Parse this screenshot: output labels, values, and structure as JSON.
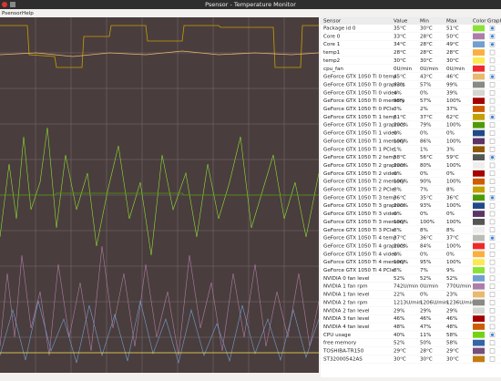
{
  "window": {
    "title": "Psensor - Temperature Monitor"
  },
  "menu": [
    "Psensor",
    "Help"
  ],
  "table": {
    "columns": [
      "Sensor",
      "Value",
      "Min",
      "Max",
      "Color",
      "Graph"
    ],
    "rows": [
      {
        "sensor": "Package id 0",
        "value": "35°C",
        "min": "30°C",
        "max": "51°C",
        "color": "#8ae234",
        "graph": true
      },
      {
        "sensor": "Core 0",
        "value": "33°C",
        "min": "28°C",
        "max": "50°C",
        "color": "#ad7fa8",
        "graph": true
      },
      {
        "sensor": "Core 1",
        "value": "34°C",
        "min": "28°C",
        "max": "49°C",
        "color": "#729fcf",
        "graph": true
      },
      {
        "sensor": "temp1",
        "value": "28°C",
        "min": "28°C",
        "max": "28°C",
        "color": "#fcaf3e",
        "graph": false
      },
      {
        "sensor": "temp2",
        "value": "30°C",
        "min": "30°C",
        "max": "30°C",
        "color": "#fce94f",
        "graph": false
      },
      {
        "sensor": "cpu_fan",
        "value": "0U/min",
        "min": "0U/min",
        "max": "0U/min",
        "color": "#ef2929",
        "graph": false
      },
      {
        "sensor": "GeForce GTX 1050 Ti 0 temp",
        "value": "45°C",
        "min": "43°C",
        "max": "46°C",
        "color": "#e9b96e",
        "graph": true
      },
      {
        "sensor": "GeForce GTX 1050 Ti 0 graphics",
        "value": "63%",
        "min": "57%",
        "max": "99%",
        "color": "#888a85",
        "graph": false
      },
      {
        "sensor": "GeForce GTX 1050 Ti 0 video",
        "value": "4%",
        "min": "0%",
        "max": "39%",
        "color": "#d3d7cf",
        "graph": false
      },
      {
        "sensor": "GeForce GTX 1050 Ti 0 memory",
        "value": "98%",
        "min": "57%",
        "max": "100%",
        "color": "#a40000",
        "graph": false
      },
      {
        "sensor": "GeForce GTX 1050 Ti 0 PCIe",
        "value": "3%",
        "min": "2%",
        "max": "37%",
        "color": "#ce5c00",
        "graph": false
      },
      {
        "sensor": "GeForce GTX 1050 Ti 1 temp",
        "value": "61°C",
        "min": "37°C",
        "max": "62°C",
        "color": "#c4a000",
        "graph": true
      },
      {
        "sensor": "GeForce GTX 1050 Ti 1 graphics",
        "value": "100%",
        "min": "79%",
        "max": "100%",
        "color": "#4e9a06",
        "graph": false
      },
      {
        "sensor": "GeForce GTX 1050 Ti 1 video",
        "value": "0%",
        "min": "0%",
        "max": "0%",
        "color": "#204a87",
        "graph": false
      },
      {
        "sensor": "GeForce GTX 1050 Ti 1 memory",
        "value": "100%",
        "min": "86%",
        "max": "100%",
        "color": "#5c3566",
        "graph": false
      },
      {
        "sensor": "GeForce GTX 1050 Ti 1 PCIe",
        "value": "1%",
        "min": "1%",
        "max": "3%",
        "color": "#8f5902",
        "graph": false
      },
      {
        "sensor": "GeForce GTX 1050 Ti 2 temp",
        "value": "58°C",
        "min": "56°C",
        "max": "59°C",
        "color": "#555753",
        "graph": true
      },
      {
        "sensor": "GeForce GTX 1050 Ti 2 graphics",
        "value": "100%",
        "min": "80%",
        "max": "100%",
        "color": "#eeeeec",
        "graph": false
      },
      {
        "sensor": "GeForce GTX 1050 Ti 2 video",
        "value": "0%",
        "min": "0%",
        "max": "0%",
        "color": "#a40000",
        "graph": false
      },
      {
        "sensor": "GeForce GTX 1050 Ti 2 memory",
        "value": "100%",
        "min": "90%",
        "max": "100%",
        "color": "#ce5c00",
        "graph": false
      },
      {
        "sensor": "GeForce GTX 1050 Ti 2 PCIe",
        "value": "8%",
        "min": "7%",
        "max": "8%",
        "color": "#c4a000",
        "graph": false
      },
      {
        "sensor": "GeForce GTX 1050 Ti 3 temp",
        "value": "36°C",
        "min": "35°C",
        "max": "36°C",
        "color": "#4e9a06",
        "graph": true
      },
      {
        "sensor": "GeForce GTX 1050 Ti 3 graphics",
        "value": "100%",
        "min": "93%",
        "max": "100%",
        "color": "#204a87",
        "graph": false
      },
      {
        "sensor": "GeForce GTX 1050 Ti 3 video",
        "value": "0%",
        "min": "0%",
        "max": "0%",
        "color": "#5c3566",
        "graph": false
      },
      {
        "sensor": "GeForce GTX 1050 Ti 3 memory",
        "value": "100%",
        "min": "100%",
        "max": "100%",
        "color": "#555753",
        "graph": false
      },
      {
        "sensor": "GeForce GTX 1050 Ti 3 PCIe",
        "value": "8%",
        "min": "8%",
        "max": "8%",
        "color": "#eeeeec",
        "graph": false
      },
      {
        "sensor": "GeForce GTX 1050 Ti 4 temp",
        "value": "37°C",
        "min": "36°C",
        "max": "37°C",
        "color": "#babdb6",
        "graph": true
      },
      {
        "sensor": "GeForce GTX 1050 Ti 4 graphics",
        "value": "100%",
        "min": "84%",
        "max": "100%",
        "color": "#ef2929",
        "graph": false
      },
      {
        "sensor": "GeForce GTX 1050 Ti 4 video",
        "value": "0%",
        "min": "0%",
        "max": "0%",
        "color": "#fcaf3e",
        "graph": false
      },
      {
        "sensor": "GeForce GTX 1050 Ti 4 memory",
        "value": "100%",
        "min": "95%",
        "max": "100%",
        "color": "#fce94f",
        "graph": false
      },
      {
        "sensor": "GeForce GTX 1050 Ti 4 PCIe",
        "value": "8%",
        "min": "7%",
        "max": "9%",
        "color": "#8ae234",
        "graph": false
      },
      {
        "sensor": "NVIDIA 0 fan level",
        "value": "52%",
        "min": "52%",
        "max": "52%",
        "color": "#729fcf",
        "graph": false
      },
      {
        "sensor": "NVIDIA 1 fan rpm",
        "value": "742U/min",
        "min": "0U/min",
        "max": "770U/min",
        "color": "#ad7fa8",
        "graph": false
      },
      {
        "sensor": "NVIDIA 1 fan level",
        "value": "22%",
        "min": "0%",
        "max": "23%",
        "color": "#e9b96e",
        "graph": false
      },
      {
        "sensor": "NVIDIA 2 fan rpm",
        "value": "1213U/min",
        "min": "1206U/min",
        "max": "1236U/min",
        "color": "#888a85",
        "graph": false
      },
      {
        "sensor": "NVIDIA 2 fan level",
        "value": "29%",
        "min": "29%",
        "max": "29%",
        "color": "#d3d7cf",
        "graph": false
      },
      {
        "sensor": "NVIDIA 3 fan level",
        "value": "46%",
        "min": "46%",
        "max": "46%",
        "color": "#a40000",
        "graph": false
      },
      {
        "sensor": "NVIDIA 4 fan level",
        "value": "48%",
        "min": "47%",
        "max": "48%",
        "color": "#ce5c00",
        "graph": false
      },
      {
        "sensor": "CPU usage",
        "value": "40%",
        "min": "11%",
        "max": "58%",
        "color": "#73d216",
        "graph": true
      },
      {
        "sensor": "free memory",
        "value": "52%",
        "min": "50%",
        "max": "58%",
        "color": "#3465a4",
        "graph": false
      },
      {
        "sensor": "TOSHIBA-TR150",
        "value": "29°C",
        "min": "28°C",
        "max": "29°C",
        "color": "#75507b",
        "graph": false
      },
      {
        "sensor": "ST32000542AS",
        "value": "30°C",
        "min": "30°C",
        "max": "30°C",
        "color": "#c17d11",
        "graph": false
      }
    ]
  }
}
